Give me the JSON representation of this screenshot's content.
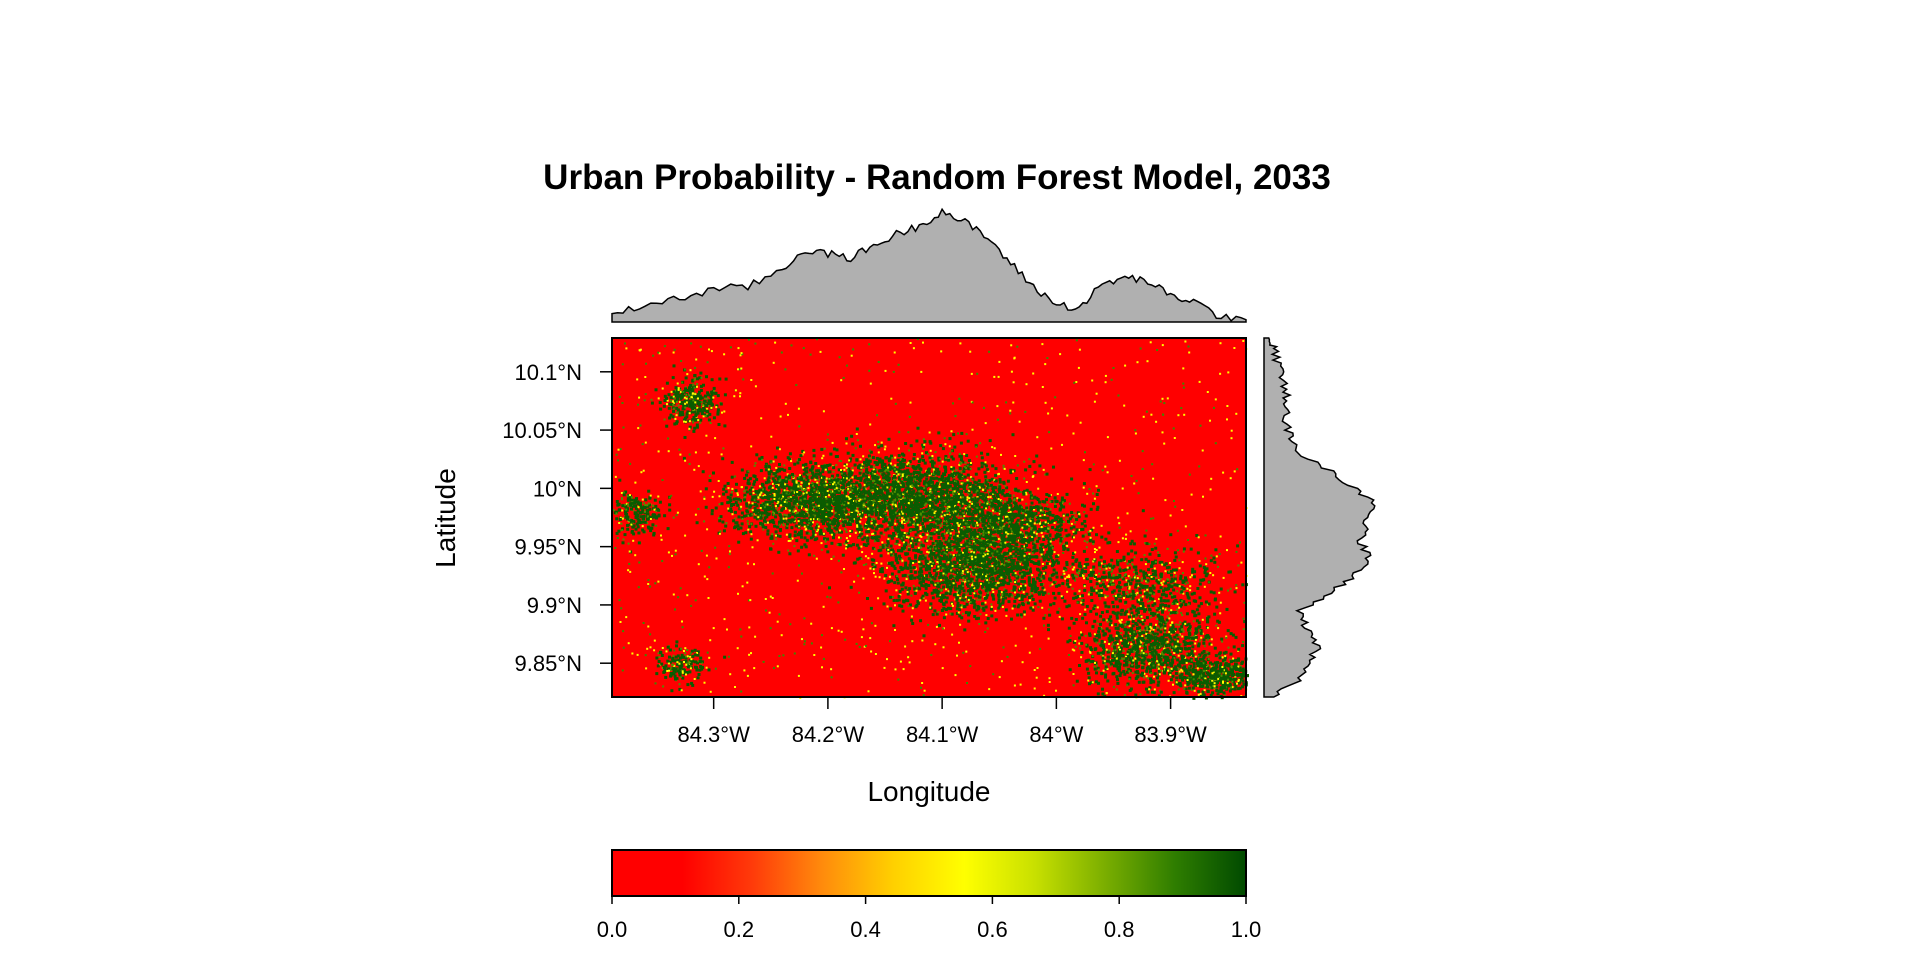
{
  "chart_data": {
    "type": "heatmap",
    "title": "Urban Probability - Random Forest Model, 2033",
    "xlabel": "Longitude",
    "ylabel": "Latitude",
    "x_ticks": [
      {
        "value": -84.3,
        "label": "84.3°W"
      },
      {
        "value": -84.2,
        "label": "84.2°W"
      },
      {
        "value": -84.1,
        "label": "84.1°W"
      },
      {
        "value": -84.0,
        "label": "84°W"
      },
      {
        "value": -83.9,
        "label": "83.9°W"
      }
    ],
    "y_ticks": [
      {
        "value": 10.1,
        "label": "10.1°N"
      },
      {
        "value": 10.05,
        "label": "10.05°N"
      },
      {
        "value": 10.0,
        "label": "10°N"
      },
      {
        "value": 9.95,
        "label": "9.95°N"
      },
      {
        "value": 9.9,
        "label": "9.9°N"
      },
      {
        "value": 9.85,
        "label": "9.85°N"
      }
    ],
    "xlim": [
      -84.389,
      -83.834
    ],
    "ylim": [
      9.821,
      10.129
    ],
    "grid": false,
    "colorbar": {
      "ticks": [
        {
          "value": 0.0,
          "label": "0.0"
        },
        {
          "value": 0.2,
          "label": "0.2"
        },
        {
          "value": 0.4,
          "label": "0.4"
        },
        {
          "value": 0.6,
          "label": "0.6"
        },
        {
          "value": 0.8,
          "label": "0.8"
        },
        {
          "value": 1.0,
          "label": "1.0"
        }
      ],
      "range": [
        0,
        1
      ],
      "colors": [
        "#ff0000",
        "#ff0000",
        "#ff3b0a",
        "#ff8c0c",
        "#ffd000",
        "#ffff00",
        "#c8e000",
        "#7aae00",
        "#2e7d00",
        "#004a00"
      ]
    },
    "palette": {
      "low": "#ff0000",
      "mid": "#ffff00",
      "high": "#0a5c00",
      "marginal_fill": "#b0b0b0",
      "marginal_line": "#000000"
    },
    "urban_clusters": [
      {
        "lon": -84.13,
        "lat": 9.995,
        "spread_lon": 0.045,
        "spread_lat": 0.018,
        "weight": 1.0
      },
      {
        "lon": -84.22,
        "lat": 9.99,
        "spread_lon": 0.035,
        "spread_lat": 0.016,
        "weight": 0.85
      },
      {
        "lon": -84.075,
        "lat": 9.935,
        "spread_lon": 0.04,
        "spread_lat": 0.02,
        "weight": 1.0
      },
      {
        "lon": -84.04,
        "lat": 9.97,
        "spread_lon": 0.03,
        "spread_lat": 0.015,
        "weight": 0.6
      },
      {
        "lon": -83.92,
        "lat": 9.865,
        "spread_lon": 0.03,
        "spread_lat": 0.017,
        "weight": 0.75
      },
      {
        "lon": -84.32,
        "lat": 10.075,
        "spread_lon": 0.012,
        "spread_lat": 0.01,
        "weight": 0.55
      },
      {
        "lon": -84.37,
        "lat": 9.98,
        "spread_lon": 0.012,
        "spread_lat": 0.01,
        "weight": 0.4
      },
      {
        "lon": -84.33,
        "lat": 9.85,
        "spread_lon": 0.01,
        "spread_lat": 0.008,
        "weight": 0.35
      },
      {
        "lon": -83.86,
        "lat": 9.84,
        "spread_lon": 0.018,
        "spread_lat": 0.008,
        "weight": 0.55
      },
      {
        "lon": -83.93,
        "lat": 9.92,
        "spread_lon": 0.035,
        "spread_lat": 0.015,
        "weight": 0.35
      }
    ],
    "top_marginal": {
      "lon": [
        -84.389,
        -84.36,
        -84.33,
        -84.3,
        -84.27,
        -84.24,
        -84.22,
        -84.2,
        -84.18,
        -84.16,
        -84.14,
        -84.12,
        -84.1,
        -84.08,
        -84.06,
        -84.04,
        -84.02,
        -84.0,
        -83.98,
        -83.96,
        -83.94,
        -83.92,
        -83.9,
        -83.88,
        -83.86,
        -83.834
      ],
      "value": [
        0.05,
        0.15,
        0.2,
        0.28,
        0.3,
        0.45,
        0.62,
        0.58,
        0.55,
        0.65,
        0.75,
        0.82,
        0.95,
        0.85,
        0.72,
        0.5,
        0.3,
        0.15,
        0.12,
        0.32,
        0.38,
        0.35,
        0.22,
        0.18,
        0.06,
        0.02
      ]
    },
    "right_marginal": {
      "lat": [
        9.821,
        9.835,
        9.85,
        9.865,
        9.88,
        9.895,
        9.91,
        9.925,
        9.94,
        9.955,
        9.97,
        9.985,
        10.0,
        10.015,
        10.03,
        10.045,
        10.06,
        10.075,
        10.09,
        10.105,
        10.12,
        10.129
      ],
      "value": [
        0.05,
        0.3,
        0.38,
        0.45,
        0.35,
        0.3,
        0.55,
        0.75,
        0.88,
        0.8,
        0.85,
        0.95,
        0.75,
        0.55,
        0.3,
        0.22,
        0.18,
        0.2,
        0.16,
        0.12,
        0.08,
        0.04
      ]
    }
  }
}
